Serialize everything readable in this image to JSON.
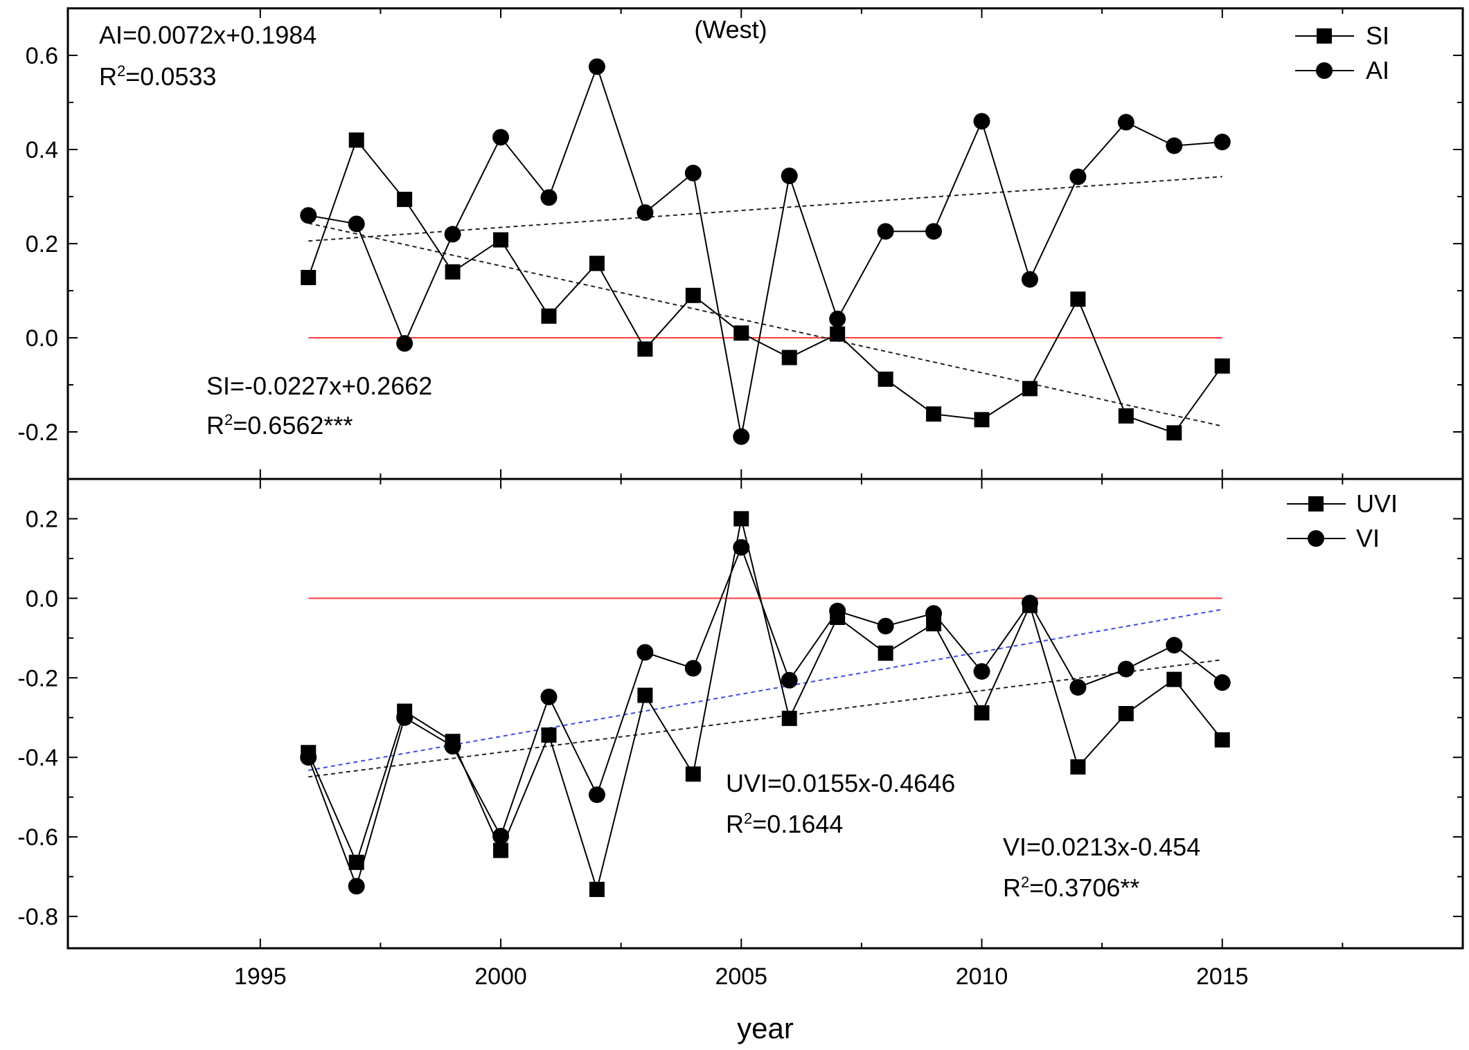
{
  "chart_data": [
    {
      "type": "line",
      "title": "(West)",
      "xlabel": "year",
      "ylabel": "",
      "xlim": [
        1991,
        2020
      ],
      "ylim": [
        -0.3,
        0.7
      ],
      "yticks": [
        -0.2,
        0.0,
        0.2,
        0.4,
        0.6
      ],
      "ytick_labels": [
        "-0.2",
        "0.0",
        "0.2",
        "0.4",
        "0.6"
      ],
      "x": [
        1996,
        1997,
        1998,
        1999,
        2000,
        2001,
        2002,
        2003,
        2004,
        2005,
        2006,
        2007,
        2008,
        2009,
        2010,
        2011,
        2012,
        2013,
        2014,
        2015
      ],
      "series": [
        {
          "name": "SI",
          "marker": "square",
          "values": [
            0.128,
            0.42,
            0.294,
            0.14,
            0.208,
            0.046,
            0.158,
            -0.024,
            0.09,
            0.01,
            -0.042,
            0.008,
            -0.088,
            -0.162,
            -0.174,
            -0.108,
            0.082,
            -0.166,
            -0.202,
            -0.06
          ]
        },
        {
          "name": "AI",
          "marker": "circle",
          "values": [
            0.26,
            0.242,
            -0.012,
            0.22,
            0.426,
            0.298,
            0.576,
            0.266,
            0.35,
            -0.21,
            0.344,
            0.04,
            0.226,
            0.226,
            0.46,
            0.124,
            0.342,
            0.458,
            0.408,
            0.416
          ]
        }
      ],
      "trendlines": [
        {
          "name": "SI trend",
          "slope": -0.0227,
          "intercept": 0.2662,
          "equation": "SI=-0.0227x+0.2662",
          "r2_prefix": "R",
          "r2_value": "=0.6562***"
        },
        {
          "name": "AI trend",
          "slope": 0.0072,
          "intercept": 0.1984,
          "equation": "AI=0.0072x+0.1984",
          "r2_prefix": "R",
          "r2_value": "=0.0533"
        }
      ],
      "reference_line": {
        "y": 0,
        "color": "#ff3b3b"
      },
      "legend_position": "top-right"
    },
    {
      "type": "line",
      "title": "",
      "xlabel": "year",
      "ylabel": "",
      "xlim": [
        1991,
        2020
      ],
      "ylim": [
        -0.88,
        0.3
      ],
      "yticks": [
        -0.8,
        -0.6,
        -0.4,
        -0.2,
        0.0,
        0.2
      ],
      "ytick_labels": [
        "-0.8",
        "-0.6",
        "-0.4",
        "-0.2",
        "0.0",
        "0.2"
      ],
      "xticks": [
        1995,
        2000,
        2005,
        2010,
        2015
      ],
      "xtick_labels": [
        "1995",
        "2000",
        "2005",
        "2010",
        "2015"
      ],
      "x": [
        1996,
        1997,
        1998,
        1999,
        2000,
        2001,
        2002,
        2003,
        2004,
        2005,
        2006,
        2007,
        2008,
        2009,
        2010,
        2011,
        2012,
        2013,
        2014,
        2015
      ],
      "series": [
        {
          "name": "UVI",
          "marker": "square",
          "values": [
            -0.388,
            -0.664,
            -0.284,
            -0.36,
            -0.634,
            -0.344,
            -0.732,
            -0.244,
            -0.442,
            0.2,
            -0.302,
            -0.048,
            -0.138,
            -0.064,
            -0.288,
            -0.018,
            -0.424,
            -0.29,
            -0.204,
            -0.356
          ]
        },
        {
          "name": "VI",
          "marker": "circle",
          "values": [
            -0.4,
            -0.724,
            -0.3,
            -0.372,
            -0.598,
            -0.248,
            -0.494,
            -0.136,
            -0.176,
            0.128,
            -0.206,
            -0.032,
            -0.07,
            -0.038,
            -0.184,
            -0.012,
            -0.224,
            -0.178,
            -0.118,
            -0.212
          ]
        }
      ],
      "trendlines": [
        {
          "name": "UVI trend",
          "slope": 0.0155,
          "intercept": -0.4646,
          "color": "#222222",
          "equation": "UVI=0.0155x-0.4646",
          "r2_prefix": "R",
          "r2_value": "=0.1644"
        },
        {
          "name": "VI trend",
          "slope": 0.0213,
          "intercept": -0.454,
          "color": "#3b49e6",
          "equation": "VI=0.0213x-0.454",
          "r2_prefix": "R",
          "r2_value": "=0.3706**"
        }
      ],
      "reference_line": {
        "y": 0,
        "color": "#ff3b3b"
      },
      "legend_position": "top-right"
    }
  ]
}
